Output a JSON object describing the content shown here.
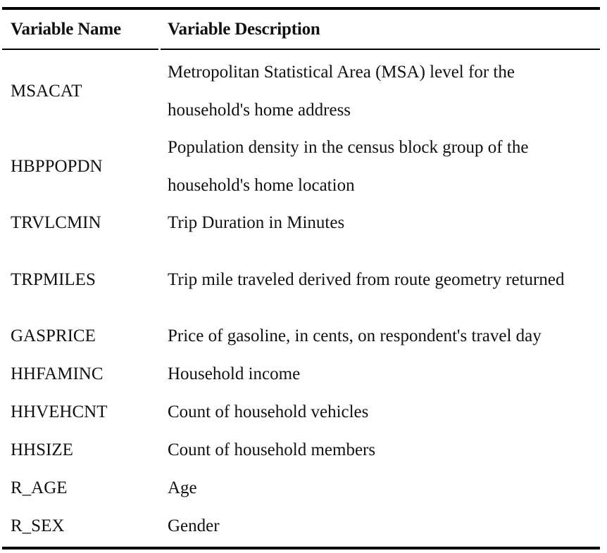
{
  "table": {
    "headers": [
      "Variable Name",
      "Variable Description"
    ],
    "rows": [
      {
        "name": "MSACAT",
        "description": "Metropolitan Statistical Area (MSA) level for the household's home address"
      },
      {
        "name": "HBPPOPDN",
        "description": "Population density in the census block group of the household's home location"
      },
      {
        "name": "TRVLCMIN",
        "description": "Trip Duration in Minutes"
      },
      {
        "name": "TRPMILES",
        "description": "Trip mile traveled derived from route geometry returned"
      },
      {
        "name": "GASPRICE",
        "description": "Price of gasoline, in cents, on respondent's travel day"
      },
      {
        "name": "HHFAMINC",
        "description": "Household income"
      },
      {
        "name": "HHVEHCNT",
        "description": "Count of household vehicles"
      },
      {
        "name": "HHSIZE",
        "description": "Count of household members"
      },
      {
        "name": "R_AGE",
        "description": "Age"
      },
      {
        "name": "R_SEX",
        "description": "Gender"
      }
    ]
  }
}
